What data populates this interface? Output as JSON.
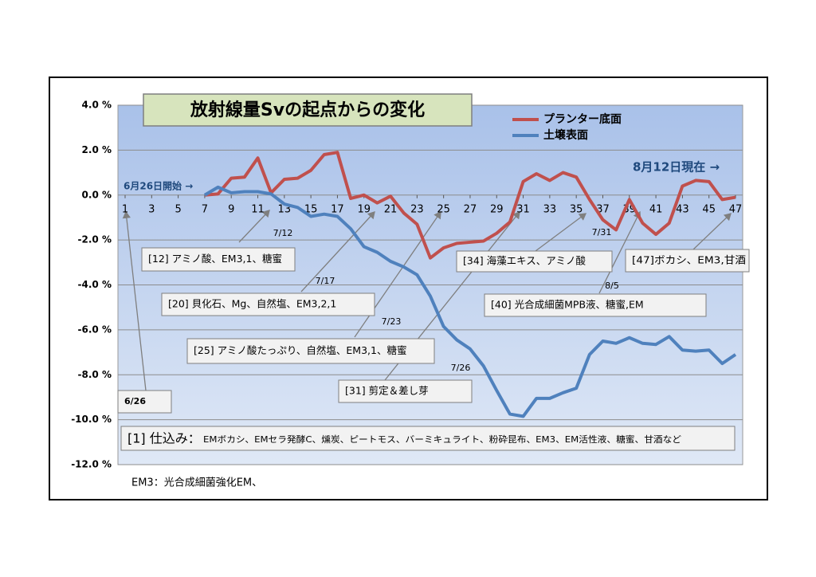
{
  "chart_data": {
    "type": "line",
    "title": "放射線量Svの起点からの変化",
    "x": [
      1,
      2,
      3,
      4,
      5,
      6,
      7,
      8,
      9,
      10,
      11,
      12,
      13,
      14,
      15,
      16,
      17,
      18,
      19,
      20,
      21,
      22,
      23,
      24,
      25,
      26,
      27,
      28,
      29,
      30,
      31,
      32,
      33,
      34,
      35,
      36,
      37,
      38,
      39,
      40,
      41,
      42,
      43,
      44,
      45,
      46,
      47
    ],
    "xlim": [
      1,
      47
    ],
    "xticks": [
      1,
      3,
      5,
      7,
      9,
      11,
      13,
      15,
      17,
      19,
      21,
      23,
      25,
      27,
      29,
      31,
      33,
      35,
      37,
      39,
      41,
      43,
      45,
      47
    ],
    "ylim": [
      -12,
      4
    ],
    "yticks": [
      {
        "value": -12,
        "label": "-12.0 %"
      },
      {
        "value": -10,
        "label": "-10.0 %"
      },
      {
        "value": -8,
        "label": "-8.0 %"
      },
      {
        "value": -6,
        "label": "-6.0 %"
      },
      {
        "value": -4,
        "label": "-4.0 %"
      },
      {
        "value": -2,
        "label": "-2.0 %"
      },
      {
        "value": 0,
        "label": "0.0 %"
      },
      {
        "value": 2,
        "label": "2.0 %"
      },
      {
        "value": 4,
        "label": "4.0 %"
      }
    ],
    "grid": true,
    "legend": "top-right",
    "series": [
      {
        "name": "プランター底面",
        "color": "#c0504d",
        "values": [
          null,
          null,
          null,
          null,
          null,
          null,
          0,
          0.05,
          0.75,
          0.8,
          1.65,
          0.1,
          0.7,
          0.75,
          1.1,
          1.8,
          1.9,
          -0.15,
          0,
          -0.35,
          -0.05,
          -0.8,
          -1.3,
          -2.8,
          -2.35,
          -2.15,
          -2.1,
          -2.05,
          -1.7,
          -1.2,
          0.6,
          0.95,
          0.65,
          1.0,
          0.8,
          -0.2,
          -1.1,
          -1.55,
          -0.2,
          -1.25,
          -1.75,
          -1.25,
          0.4,
          0.65,
          0.6,
          -0.2,
          -0.1
        ]
      },
      {
        "name": "土壌表面",
        "color": "#4f81bd",
        "values": [
          null,
          null,
          null,
          null,
          null,
          null,
          0,
          0.35,
          0.1,
          0.15,
          0.15,
          0.05,
          -0.4,
          -0.55,
          -0.95,
          -0.85,
          -0.95,
          -1.5,
          -2.3,
          -2.55,
          -2.95,
          -3.2,
          -3.55,
          -4.5,
          -5.85,
          -6.45,
          -6.85,
          -7.6,
          -8.7,
          -9.75,
          -9.85,
          -9.05,
          -9.05,
          -8.8,
          -8.6,
          -7.1,
          -6.5,
          -6.6,
          -6.35,
          -6.6,
          -6.65,
          -6.3,
          -6.9,
          -6.95,
          -6.9,
          -7.5,
          -7.1
        ]
      }
    ],
    "start_note": "6月26日開始 →",
    "current_note": "8月12日現在 →",
    "annotations": [
      "[12] アミノ酸、EM3,1、糖蜜",
      "[20] 貝化石、Mg、自然塩、EM3,2,1",
      "[25] アミノ酸たっぷり、自然塩、EM3,1、糖蜜",
      "[31] 剪定＆差し芽",
      "[34] 海藻エキス、アミノ酸",
      "[47]ボカシ、EM3,甘酒",
      "[40] 光合成細菌MPB液、糖蜜,EM",
      "6/26"
    ],
    "setup_label": "[1] 仕込み：",
    "setup_text": "EMボカシ、EMセラ発酵C、燻炭、ピートモス、バーミキュライト、粉砕昆布、EM3、EM活性液、糖蜜、甘酒など",
    "dates": [
      "7/12",
      "7/17",
      "7/23",
      "7/26",
      "7/31",
      "8/5"
    ],
    "footnote": "EM3：光合成細菌強化EM、"
  }
}
